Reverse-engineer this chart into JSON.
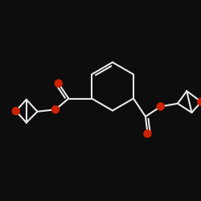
{
  "bg_color": "#0d0d0d",
  "bond_color": "#e8e8e8",
  "oxygen_color": "#cc2200",
  "line_width": 1.5,
  "fig_size": [
    2.5,
    2.5
  ],
  "dpi": 100,
  "xlim": [
    -4.8,
    5.2
  ],
  "ylim": [
    -4.5,
    5.5
  ]
}
